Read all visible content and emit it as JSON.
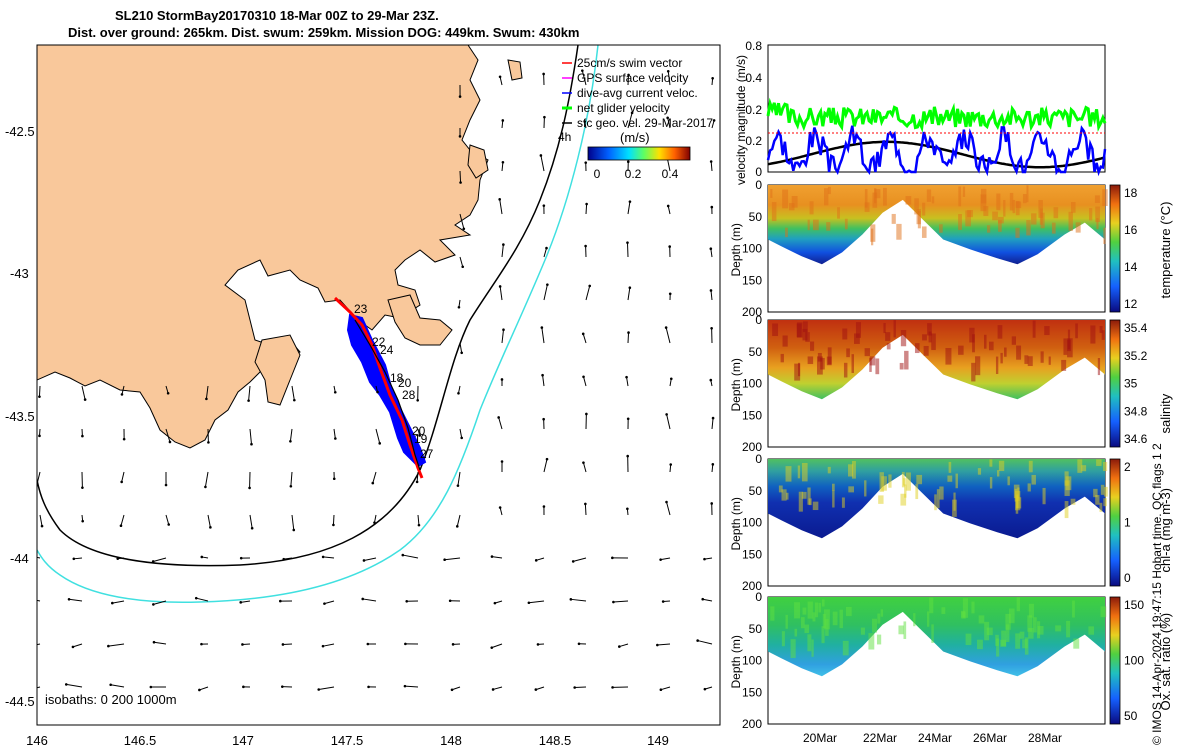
{
  "title_line1": "SL210 StormBay20170310 18-Mar 00Z to 29-Mar 23Z.",
  "title_line2": "Dist. over ground: 265km. Dist. swum: 259km. Mission DOG: 449km. Swum: 430km",
  "credit": "© IMOS 14-Apr-2024 19:47:15 Hobart time. QC flags 1  2",
  "colors": {
    "land": "#f9c89b",
    "glider_red": "#ff0000",
    "current_blue": "#0000ff",
    "net_green": "#00ff00",
    "geo_black": "#000000",
    "gps_magenta": "#ff00ff",
    "isobath_200": "#000000",
    "isobath_1000": "#40e0e0"
  },
  "map": {
    "legend": [
      "25cm/s swim vector",
      "GPS surface velocity",
      "dive-avg current veloc.",
      "net glider velocity",
      "sfc geo. vel. 29-Mar-2017"
    ],
    "legend_extra": "4h",
    "colorbar_label": "(m/s)",
    "colorbar_ticks": [
      "0",
      "0.2",
      "0.4"
    ],
    "isobaths": "isobaths: 0   200  1000m",
    "xticks": [
      "146",
      "146.5",
      "147",
      "147.5",
      "148",
      "148.5",
      "149"
    ],
    "yticks": [
      "-42.5",
      "-43",
      "-43.5",
      "-44",
      "-44.5"
    ],
    "track_labels": [
      "23",
      "22",
      "24",
      "18",
      "20",
      "28",
      "20",
      "19",
      "27"
    ]
  },
  "chart_data": [
    {
      "type": "line",
      "xlabel": "",
      "ylabel": "velocity magnitude (m/s)",
      "ylim": [
        0,
        0.8
      ],
      "yticks": [
        "0",
        "0.2",
        "0.4",
        "0.6",
        "0.8"
      ],
      "x_range": [
        "18-Mar",
        "29-Mar"
      ],
      "series_desc": [
        "dive-avg current (blue)",
        "net glider velocity (green)",
        "sfc geo. vel. (black)"
      ]
    },
    {
      "type": "heatmap",
      "ylabel": "Depth (m)",
      "yticks": [
        "0",
        "50",
        "100",
        "150",
        "200"
      ],
      "colorbar_label": "temperature (°C)",
      "colorbar_ticks": [
        "12",
        "14",
        "16",
        "18"
      ],
      "clim": [
        11,
        18.5
      ]
    },
    {
      "type": "heatmap",
      "ylabel": "Depth (m)",
      "yticks": [
        "0",
        "50",
        "100",
        "150",
        "200"
      ],
      "colorbar_label": "salinity",
      "colorbar_ticks": [
        "34.6",
        "34.8",
        "35",
        "35.2",
        "35.4"
      ],
      "clim": [
        34.6,
        35.4
      ]
    },
    {
      "type": "heatmap",
      "ylabel": "Depth (m)",
      "yticks": [
        "0",
        "50",
        "100",
        "150",
        "200"
      ],
      "colorbar_label": "chl-a (mg m-3)",
      "colorbar_ticks": [
        "0",
        "1",
        "2"
      ],
      "clim": [
        0,
        2
      ]
    },
    {
      "type": "heatmap",
      "ylabel": "Depth (m)",
      "yticks": [
        "0",
        "50",
        "100",
        "150",
        "200"
      ],
      "xticks": [
        "20Mar",
        "22Mar",
        "24Mar",
        "26Mar",
        "28Mar"
      ],
      "colorbar_label": "Ox. sat. ratio (%)",
      "colorbar_ticks": [
        "50",
        "100",
        "150"
      ],
      "clim": [
        30,
        170
      ]
    }
  ]
}
